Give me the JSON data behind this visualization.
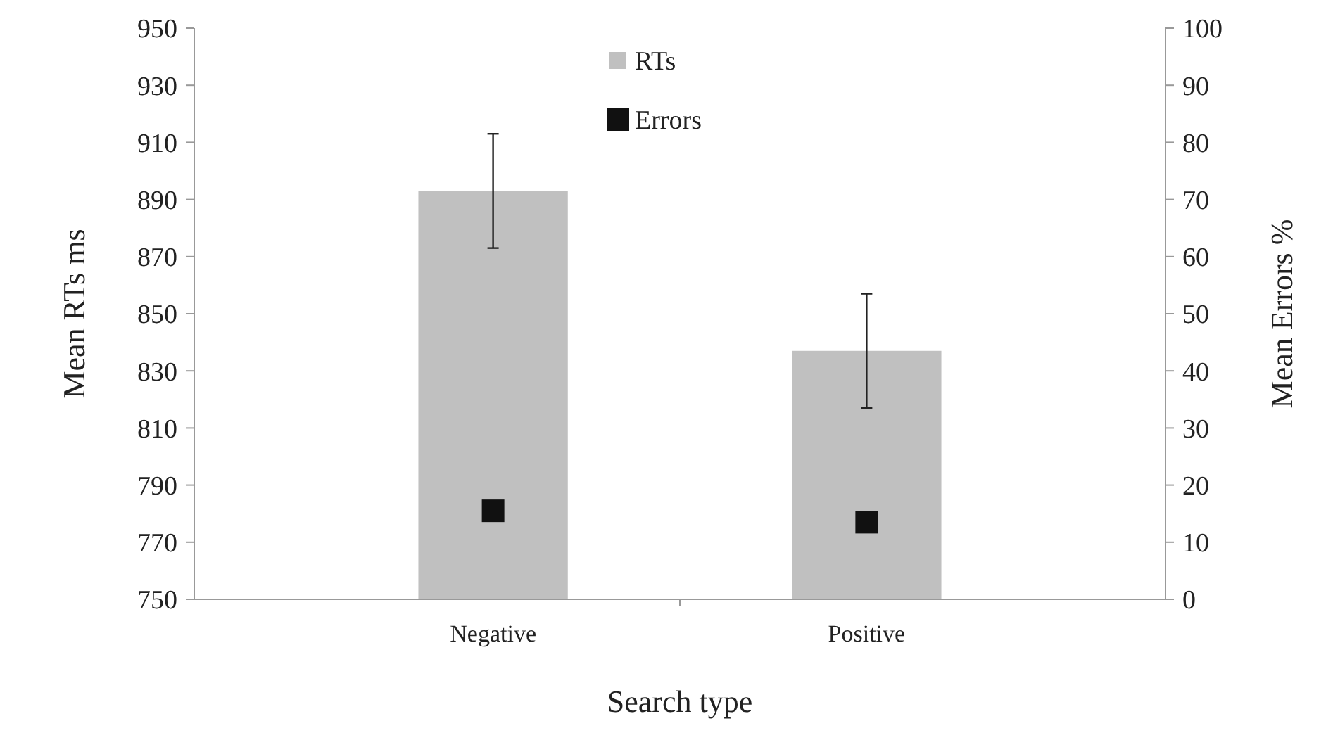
{
  "chart_data": {
    "type": "bar",
    "xlabel": "Search type",
    "ylabel": "Mean RTs ms",
    "y2label": "Mean Errors %",
    "categories": [
      "Negative",
      "Positive"
    ],
    "series": [
      {
        "name": "RTs",
        "color": "#c0c0c0",
        "values": [
          893,
          837
        ],
        "errors": [
          20,
          20
        ]
      },
      {
        "name": "Errors",
        "type": "scatter",
        "axis": "y2",
        "color": "#111111",
        "marker": "square",
        "values": [
          15.5,
          13.5
        ]
      }
    ],
    "ylim": [
      750,
      950
    ],
    "yticks": [
      750,
      770,
      790,
      810,
      830,
      850,
      870,
      890,
      910,
      930,
      950
    ],
    "y2lim": [
      0,
      100
    ],
    "y2ticks": [
      0,
      10,
      20,
      30,
      40,
      50,
      60,
      70,
      80,
      90,
      100
    ],
    "legend": "top",
    "grid": false
  }
}
